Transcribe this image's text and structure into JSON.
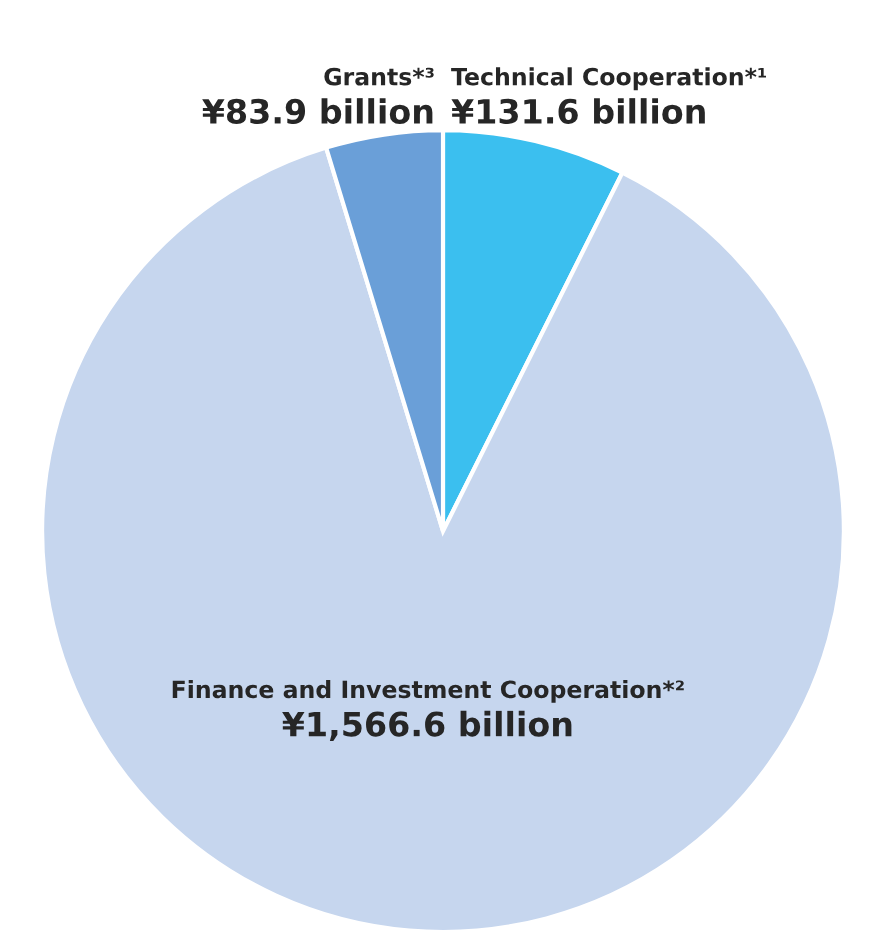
{
  "chart_data": {
    "type": "pie",
    "categories": [
      "Technical Cooperation*¹",
      "Finance and Investment Cooperation*²",
      "Grants*³"
    ],
    "values": [
      131.6,
      1566.6,
      83.9
    ],
    "value_labels": [
      "¥131.6 billion",
      "¥1,566.6 billion",
      "¥83.9 billion"
    ],
    "colors": [
      "#3bbfef",
      "#c6d6ee",
      "#6a9fd8"
    ]
  }
}
